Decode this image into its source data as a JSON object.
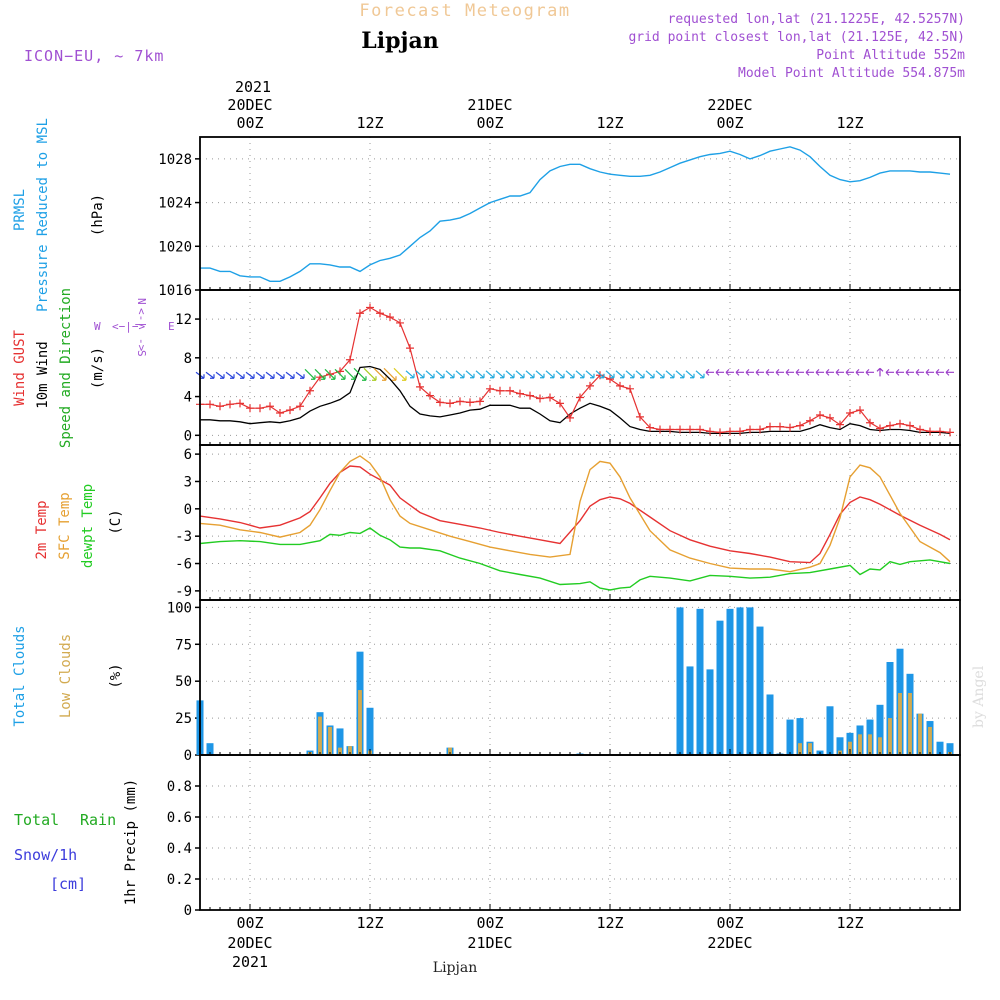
{
  "header": {
    "title": "Forecast Meteogram",
    "location": "Lipjan",
    "model": "ICON−EU, ~ 7km",
    "requested": "requested lon,lat (21.1225E, 42.5257N)",
    "grid_point": "grid point closest lon,lat (21.125E, 42.5N)",
    "point_altitude": "Point Altitude 552m",
    "model_altitude": "Model Point Altitude 554.875m",
    "footer": "Lipjan",
    "credit": "by Angel"
  },
  "colors": {
    "pressure": "#1ea0e6",
    "gust": "#e63232",
    "wind": "#000000",
    "wind_label": "#22aa22",
    "t2m": "#e63232",
    "sfc": "#e6a032",
    "dewpt": "#22cc22",
    "total_cloud": "#1e96e6",
    "low_cloud": "#d2aa50",
    "rain": "#22aa22",
    "snow": "#3c3cdc",
    "purple": "#a050d2",
    "title": "#f0c896"
  },
  "time_axis": {
    "top_year": "2021",
    "top_labels": [
      {
        "h": 0,
        "line1": "20DEC",
        "line2": "00Z"
      },
      {
        "h": 12,
        "line1": "",
        "line2": "12Z"
      },
      {
        "h": 24,
        "line1": "21DEC",
        "line2": "00Z"
      },
      {
        "h": 36,
        "line1": "",
        "line2": "12Z"
      },
      {
        "h": 48,
        "line1": "22DEC",
        "line2": "00Z"
      },
      {
        "h": 60,
        "line1": "",
        "line2": "12Z"
      }
    ],
    "bottom_labels": [
      {
        "h": 0,
        "line1": "00Z",
        "line2": "20DEC",
        "line3": "2021"
      },
      {
        "h": 12,
        "line1": "12Z",
        "line2": "",
        "line3": ""
      },
      {
        "h": 24,
        "line1": "00Z",
        "line2": "21DEC",
        "line3": ""
      },
      {
        "h": 36,
        "line1": "12Z",
        "line2": "",
        "line3": ""
      },
      {
        "h": 48,
        "line1": "00Z",
        "line2": "22DEC",
        "line3": ""
      },
      {
        "h": 60,
        "line1": "12Z",
        "line2": "",
        "line3": ""
      }
    ],
    "range_hours": [
      -5,
      71
    ]
  },
  "chart_data": [
    {
      "type": "line",
      "panel": "pressure",
      "labels": [
        "PRMSL",
        "Pressure Reduced to MSL",
        "(hPa)"
      ],
      "ylim": [
        1016,
        1030
      ],
      "yticks": [
        1016,
        1020,
        1024,
        1028
      ],
      "series": [
        {
          "name": "PRMSL",
          "x": [
            -5,
            -4,
            -3,
            -2,
            -1,
            0,
            1,
            2,
            3,
            4,
            5,
            6,
            7,
            8,
            9,
            10,
            11,
            12,
            13,
            14,
            15,
            16,
            17,
            18,
            19,
            20,
            21,
            22,
            23,
            24,
            25,
            26,
            27,
            28,
            29,
            30,
            31,
            32,
            33,
            34,
            35,
            36,
            37,
            38,
            39,
            40,
            41,
            42,
            43,
            44,
            45,
            46,
            47,
            48,
            49,
            50,
            51,
            52,
            53,
            54,
            55,
            56,
            57,
            58,
            59,
            60,
            61,
            62,
            63,
            64,
            65,
            66,
            67,
            68,
            69,
            70
          ],
          "values": [
            1018.0,
            1018.0,
            1017.7,
            1017.7,
            1017.3,
            1017.2,
            1017.2,
            1016.8,
            1016.8,
            1017.2,
            1017.7,
            1018.4,
            1018.4,
            1018.3,
            1018.1,
            1018.1,
            1017.7,
            1018.3,
            1018.7,
            1018.9,
            1019.2,
            1020.0,
            1020.8,
            1021.4,
            1022.3,
            1022.4,
            1022.6,
            1023.0,
            1023.5,
            1024.0,
            1024.3,
            1024.6,
            1024.6,
            1024.9,
            1026.1,
            1026.9,
            1027.3,
            1027.5,
            1027.5,
            1027.1,
            1026.8,
            1026.6,
            1026.5,
            1026.4,
            1026.4,
            1026.5,
            1026.8,
            1027.2,
            1027.6,
            1027.9,
            1028.2,
            1028.4,
            1028.5,
            1028.7,
            1028.4,
            1028.0,
            1028.3,
            1028.7,
            1028.9,
            1029.1,
            1028.8,
            1028.2,
            1027.3,
            1026.5,
            1026.1,
            1025.9,
            1026.0,
            1026.3,
            1026.7,
            1026.9,
            1026.9,
            1026.9,
            1026.8,
            1026.8,
            1026.7,
            1026.6
          ]
        }
      ]
    },
    {
      "type": "line",
      "panel": "wind",
      "labels": [
        "Wind GUST",
        "10m Wind",
        "Speed and Direction",
        "(m/s)"
      ],
      "compass": {
        "n": "N",
        "s": "S",
        "w": "W",
        "e": "E",
        "arrow": "<−|−>"
      },
      "ylim": [
        -1,
        15
      ],
      "yticks": [
        0,
        4,
        8,
        12
      ],
      "series": [
        {
          "name": "Wind GUST",
          "x": [
            -5,
            -4,
            -3,
            -2,
            -1,
            0,
            1,
            2,
            3,
            4,
            5,
            6,
            7,
            8,
            9,
            10,
            11,
            12,
            13,
            14,
            15,
            16,
            17,
            18,
            19,
            20,
            21,
            22,
            23,
            24,
            25,
            26,
            27,
            28,
            29,
            30,
            31,
            32,
            33,
            34,
            35,
            36,
            37,
            38,
            39,
            40,
            41,
            42,
            43,
            44,
            45,
            46,
            47,
            48,
            49,
            50,
            51,
            52,
            53,
            54,
            55,
            56,
            57,
            58,
            59,
            60,
            61,
            62,
            63,
            64,
            65,
            66,
            67,
            68,
            69,
            70
          ],
          "values": [
            3.2,
            3.2,
            3.0,
            3.2,
            3.3,
            2.8,
            2.8,
            3.0,
            2.3,
            2.6,
            3.0,
            4.6,
            6.0,
            6.3,
            6.6,
            7.8,
            12.6,
            13.2,
            12.6,
            12.2,
            11.6,
            9.0,
            5.0,
            4.1,
            3.4,
            3.3,
            3.5,
            3.4,
            3.5,
            4.8,
            4.6,
            4.6,
            4.3,
            4.1,
            3.8,
            3.9,
            3.3,
            1.8,
            3.9,
            5.1,
            6.2,
            5.8,
            5.1,
            4.8,
            1.9,
            0.8,
            0.6,
            0.6,
            0.6,
            0.6,
            0.6,
            0.4,
            0.3,
            0.4,
            0.4,
            0.6,
            0.6,
            0.9,
            0.9,
            0.8,
            1.0,
            1.5,
            2.1,
            1.8,
            1.1,
            2.3,
            2.6,
            1.3,
            0.7,
            1.0,
            1.2,
            1.0,
            0.6,
            0.4,
            0.4,
            0.3
          ]
        },
        {
          "name": "10m Wind",
          "x": [
            -5,
            -4,
            -3,
            -2,
            -1,
            0,
            1,
            2,
            3,
            4,
            5,
            6,
            7,
            8,
            9,
            10,
            11,
            12,
            13,
            14,
            15,
            16,
            17,
            18,
            19,
            20,
            21,
            22,
            23,
            24,
            25,
            26,
            27,
            28,
            29,
            30,
            31,
            32,
            33,
            34,
            35,
            36,
            37,
            38,
            39,
            40,
            41,
            42,
            43,
            44,
            45,
            46,
            47,
            48,
            49,
            50,
            51,
            52,
            53,
            54,
            55,
            56,
            57,
            58,
            59,
            60,
            61,
            62,
            63,
            64,
            65,
            66,
            67,
            68,
            69,
            70
          ],
          "values": [
            1.6,
            1.6,
            1.5,
            1.5,
            1.4,
            1.2,
            1.3,
            1.4,
            1.3,
            1.5,
            1.8,
            2.5,
            3.0,
            3.3,
            3.7,
            4.4,
            7.0,
            7.1,
            6.8,
            5.8,
            4.6,
            3.0,
            2.2,
            2.0,
            1.9,
            2.1,
            2.3,
            2.6,
            2.7,
            3.1,
            3.1,
            3.1,
            2.8,
            2.8,
            2.2,
            1.5,
            1.3,
            2.2,
            2.8,
            3.3,
            3.0,
            2.6,
            1.8,
            0.9,
            0.6,
            0.4,
            0.4,
            0.4,
            0.3,
            0.3,
            0.3,
            0.2,
            0.2,
            0.2,
            0.2,
            0.3,
            0.3,
            0.4,
            0.4,
            0.4,
            0.4,
            0.7,
            1.1,
            0.8,
            0.6,
            1.2,
            1.0,
            0.6,
            0.5,
            0.6,
            0.6,
            0.5,
            0.3,
            0.3,
            0.3,
            0.2
          ]
        }
      ]
    },
    {
      "type": "line",
      "panel": "temperature",
      "labels": [
        "2m Temp",
        "SFC Temp",
        "dewpt Temp",
        "(C)"
      ],
      "ylim": [
        -10,
        7
      ],
      "yticks": [
        -9,
        -6,
        -3,
        0,
        3,
        6
      ],
      "series": [
        {
          "name": "2m Temp",
          "x": [
            -5,
            -3,
            -1,
            0,
            1,
            3,
            5,
            6,
            7,
            8,
            9,
            10,
            11,
            12,
            13,
            14,
            15,
            17,
            19,
            21,
            23,
            25,
            27,
            29,
            31,
            33,
            34,
            35,
            36,
            37,
            38,
            40,
            42,
            44,
            46,
            48,
            50,
            52,
            54,
            56,
            57,
            58,
            59,
            60,
            61,
            62,
            63,
            65,
            67,
            69,
            70
          ],
          "values": [
            -0.8,
            -1.1,
            -1.5,
            -1.8,
            -2.1,
            -1.8,
            -1.0,
            -0.3,
            1.2,
            2.8,
            4.0,
            4.7,
            4.6,
            3.8,
            3.2,
            2.6,
            1.2,
            -0.4,
            -1.3,
            -1.7,
            -2.1,
            -2.6,
            -3.0,
            -3.4,
            -3.8,
            -1.3,
            0.3,
            1.0,
            1.3,
            1.1,
            0.6,
            -0.9,
            -2.4,
            -3.4,
            -4.1,
            -4.6,
            -4.9,
            -5.3,
            -5.8,
            -5.9,
            -4.9,
            -2.8,
            -0.6,
            0.7,
            1.3,
            1.0,
            0.5,
            -0.7,
            -1.8,
            -2.8,
            -3.4
          ]
        },
        {
          "name": "SFC Temp",
          "x": [
            -5,
            -3,
            -1,
            1,
            3,
            5,
            6,
            7,
            8,
            9,
            10,
            11,
            12,
            13,
            14,
            15,
            16,
            18,
            20,
            22,
            24,
            26,
            28,
            30,
            32,
            33,
            34,
            35,
            36,
            37,
            38,
            40,
            42,
            44,
            46,
            48,
            50,
            52,
            54,
            56,
            57,
            58,
            59,
            60,
            61,
            62,
            63,
            65,
            67,
            69,
            70
          ],
          "values": [
            -1.6,
            -1.8,
            -2.3,
            -2.6,
            -3.1,
            -2.6,
            -1.8,
            -0.1,
            2.0,
            4.0,
            5.2,
            5.8,
            5.0,
            3.5,
            1.0,
            -0.8,
            -1.6,
            -2.3,
            -3.0,
            -3.6,
            -4.2,
            -4.6,
            -5.0,
            -5.3,
            -5.0,
            0.8,
            4.3,
            5.2,
            5.0,
            3.5,
            1.2,
            -2.4,
            -4.5,
            -5.4,
            -6.0,
            -6.5,
            -6.6,
            -6.6,
            -6.9,
            -6.4,
            -6.0,
            -4.0,
            -1.0,
            3.5,
            4.8,
            4.5,
            3.5,
            -0.5,
            -3.6,
            -4.8,
            -5.8
          ]
        },
        {
          "name": "dewpt Temp",
          "x": [
            -5,
            -3,
            -1,
            1,
            3,
            5,
            6,
            7,
            8,
            9,
            10,
            11,
            12,
            13,
            14,
            15,
            16,
            17,
            19,
            21,
            23,
            25,
            27,
            29,
            31,
            33,
            34,
            35,
            36,
            37,
            38,
            39,
            40,
            42,
            44,
            46,
            48,
            50,
            52,
            54,
            56,
            58,
            60,
            61,
            62,
            63,
            64,
            65,
            66,
            68,
            70
          ],
          "values": [
            -3.8,
            -3.6,
            -3.5,
            -3.6,
            -3.9,
            -3.9,
            -3.7,
            -3.5,
            -2.8,
            -2.9,
            -2.6,
            -2.7,
            -2.1,
            -2.9,
            -3.4,
            -4.2,
            -4.3,
            -4.3,
            -4.6,
            -5.4,
            -6.0,
            -6.8,
            -7.2,
            -7.6,
            -8.3,
            -8.2,
            -8.0,
            -8.7,
            -8.9,
            -8.7,
            -8.6,
            -7.8,
            -7.4,
            -7.6,
            -7.9,
            -7.3,
            -7.4,
            -7.6,
            -7.5,
            -7.1,
            -7.0,
            -6.6,
            -6.2,
            -7.2,
            -6.6,
            -6.7,
            -5.8,
            -6.1,
            -5.8,
            -5.6,
            -6.0
          ]
        }
      ]
    },
    {
      "type": "bar",
      "panel": "clouds",
      "labels": [
        "Total Clouds",
        "Low Clouds",
        "(%)"
      ],
      "ylim": [
        0,
        105
      ],
      "yticks": [
        0,
        25,
        50,
        75,
        100
      ],
      "series": [
        {
          "name": "Total Clouds",
          "x": [
            -5,
            -4,
            6,
            7,
            8,
            9,
            10,
            11,
            12,
            20,
            33,
            43,
            44,
            45,
            46,
            47,
            48,
            49,
            50,
            51,
            52,
            53,
            54,
            55,
            56,
            57,
            58,
            59,
            60,
            61,
            62,
            63,
            64,
            65,
            66,
            67,
            68,
            69,
            70
          ],
          "values": [
            37,
            8,
            3,
            29,
            20,
            18,
            6,
            70,
            32,
            5,
            1,
            100,
            60,
            99,
            58,
            91,
            99,
            100,
            100,
            87,
            41,
            1,
            24,
            25,
            9,
            3,
            33,
            12,
            15,
            20,
            24,
            34,
            63,
            72,
            55,
            28,
            23,
            9,
            8
          ]
        },
        {
          "name": "Low Clouds",
          "x": [
            6,
            7,
            8,
            9,
            10,
            11,
            12,
            20,
            54,
            55,
            56,
            57,
            58,
            59,
            60,
            61,
            62,
            63,
            64,
            65,
            66,
            67,
            68,
            69,
            70
          ],
          "values": [
            2,
            26,
            19,
            5,
            6,
            44,
            3,
            5,
            0,
            8,
            8,
            0,
            0,
            3,
            9,
            14,
            14,
            12,
            25,
            42,
            42,
            28,
            19,
            0,
            2
          ]
        }
      ]
    },
    {
      "type": "bar",
      "panel": "precip",
      "labels": [
        "Total",
        "Rain",
        "Snow/1h",
        "[cm]",
        "1hr Precip (mm)"
      ],
      "ylim": [
        0,
        1.0
      ],
      "yticks": [
        0,
        0.2,
        0.4,
        0.6,
        0.8
      ],
      "series": [
        {
          "name": "Total",
          "x": [],
          "values": []
        },
        {
          "name": "Snow/1h",
          "x": [],
          "values": []
        }
      ]
    }
  ]
}
